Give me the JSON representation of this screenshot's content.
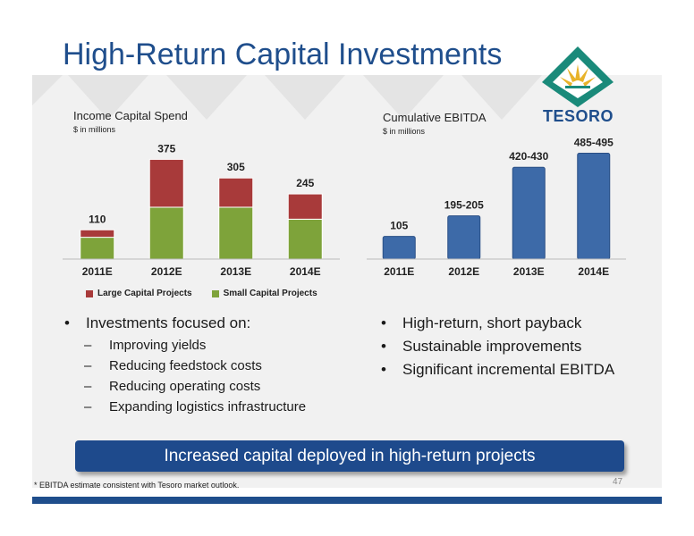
{
  "slide": {
    "title": "High-Return Capital Investments",
    "logo_text": "TESORO",
    "page_number": "47",
    "banner": "Increased capital deployed in high-return projects",
    "footnote": "* EBITDA estimate consistent with Tesoro market outlook."
  },
  "bullets_left": {
    "heading": "Investments focused on:",
    "items": [
      "Improving yields",
      "Reducing feedstock costs",
      "Reducing operating costs",
      "Expanding logistics infrastructure"
    ]
  },
  "bullets_right": {
    "items": [
      "High-return, short payback",
      "Sustainable improvements",
      "Significant incremental EBITDA"
    ]
  },
  "colors": {
    "title_blue": "#1f4e8c",
    "large_capital": "#a83a3a",
    "small_capital": "#7ea33a",
    "ebitda_bar": "#3d6aa8",
    "logo_teal": "#1a8a7a",
    "logo_gold": "#e8b32a"
  },
  "chart_data": [
    {
      "type": "bar",
      "stacked": true,
      "title": "Income Capital Spend",
      "subtitle": "$ in millions",
      "categories": [
        "2011E",
        "2012E",
        "2013E",
        "2014E"
      ],
      "series": [
        {
          "name": "Small Capital Projects",
          "values": [
            82,
            195,
            195,
            150
          ]
        },
        {
          "name": "Large Capital Projects",
          "values": [
            28,
            180,
            110,
            95
          ]
        }
      ],
      "total_labels": [
        "110",
        "375",
        "305",
        "245"
      ],
      "ylim": [
        0,
        420
      ],
      "grid": false,
      "legend": "bottom"
    },
    {
      "type": "bar",
      "title": "Cumulative EBITDA",
      "subtitle": "$ in millions",
      "categories": [
        "2011E",
        "2012E",
        "2013E",
        "2014E"
      ],
      "values": [
        105,
        200,
        425,
        490
      ],
      "labels": [
        "105",
        "195-205",
        "420-430",
        "485-495"
      ],
      "ylim": [
        0,
        550
      ],
      "grid": false,
      "legend": "none"
    }
  ]
}
